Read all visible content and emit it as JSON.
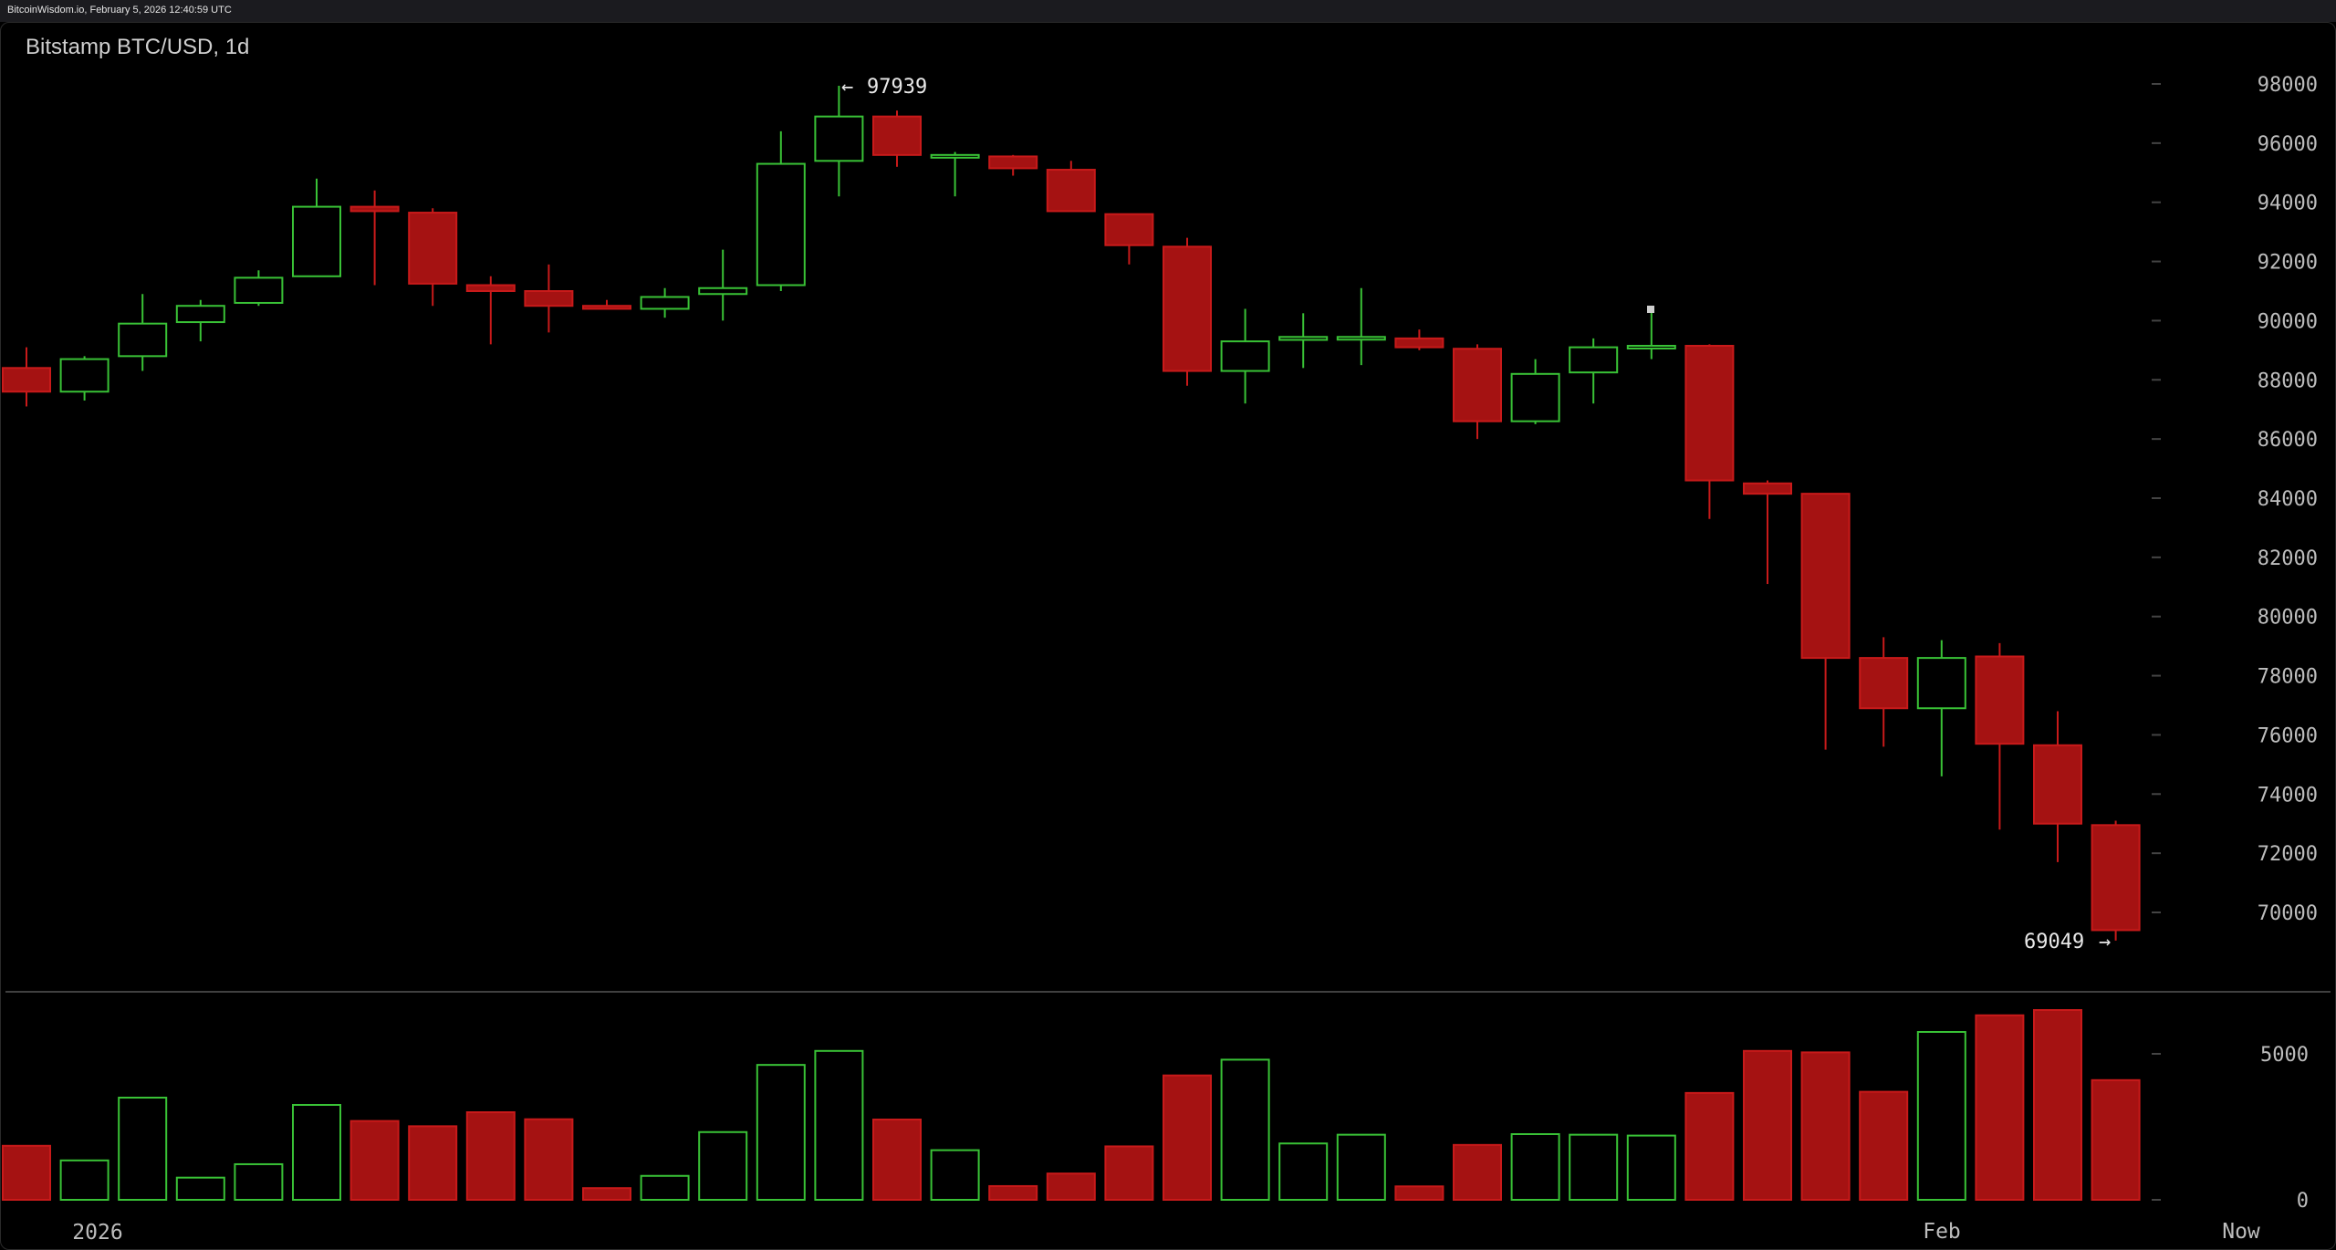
{
  "header": {
    "source": "BitcoinWisdom.io, February 5, 2026 12:40:59 UTC",
    "title": "Bitstamp BTC/USD, 1d"
  },
  "colors": {
    "up": "#39c236",
    "down": "#a51212",
    "down_edge": "#c81a1a",
    "grid_tick": "#444444",
    "separator": "#555555"
  },
  "chart_data": {
    "type": "candlestick",
    "title": "Bitstamp BTC/USD, 1d",
    "price_ylim": [
      68000,
      99200
    ],
    "price_ticks": [
      70000,
      72000,
      74000,
      76000,
      78000,
      80000,
      82000,
      84000,
      86000,
      88000,
      90000,
      92000,
      94000,
      96000,
      98000
    ],
    "volume_ylim": [
      0,
      6600
    ],
    "volume_ticks": [
      0,
      5000
    ],
    "x_labels": [
      "2026",
      "Feb",
      "Now"
    ],
    "annotations": {
      "high": "97939",
      "low": "69049"
    },
    "candles": [
      {
        "open": 88400,
        "high": 89100,
        "low": 87100,
        "close": 87600,
        "volume": 1850
      },
      {
        "open": 87600,
        "high": 88800,
        "low": 87300,
        "close": 88700,
        "volume": 1350
      },
      {
        "open": 88800,
        "high": 90900,
        "low": 88300,
        "close": 89900,
        "volume": 3500
      },
      {
        "open": 89950,
        "high": 90700,
        "low": 89300,
        "close": 90500,
        "volume": 760
      },
      {
        "open": 90600,
        "high": 91700,
        "low": 90500,
        "close": 91450,
        "volume": 1220
      },
      {
        "open": 91500,
        "high": 94800,
        "low": 91500,
        "close": 93850,
        "volume": 3250
      },
      {
        "open": 93850,
        "high": 94400,
        "low": 91200,
        "close": 93700,
        "volume": 2700
      },
      {
        "open": 93650,
        "high": 93800,
        "low": 90500,
        "close": 91250,
        "volume": 2520
      },
      {
        "open": 91200,
        "high": 91500,
        "low": 89200,
        "close": 91000,
        "volume": 3000
      },
      {
        "open": 91000,
        "high": 91900,
        "low": 89600,
        "close": 90500,
        "volume": 2760
      },
      {
        "open": 90500,
        "high": 90700,
        "low": 90400,
        "close": 90400,
        "volume": 400
      },
      {
        "open": 90400,
        "high": 91100,
        "low": 90100,
        "close": 90800,
        "volume": 820
      },
      {
        "open": 90900,
        "high": 92400,
        "low": 90000,
        "close": 91100,
        "volume": 2320
      },
      {
        "open": 91200,
        "high": 96400,
        "low": 91000,
        "close": 95300,
        "volume": 4620
      },
      {
        "open": 95400,
        "high": 97939,
        "low": 94200,
        "close": 96900,
        "volume": 5100
      },
      {
        "open": 96900,
        "high": 97100,
        "low": 95200,
        "close": 95600,
        "volume": 2750
      },
      {
        "open": 95600,
        "high": 95700,
        "low": 94200,
        "close": 95600,
        "volume": 1700
      },
      {
        "open": 95550,
        "high": 95600,
        "low": 94900,
        "close": 95150,
        "volume": 470
      },
      {
        "open": 95100,
        "high": 95400,
        "low": 93700,
        "close": 93700,
        "volume": 900
      },
      {
        "open": 93600,
        "high": 93600,
        "low": 91900,
        "close": 92550,
        "volume": 1830
      },
      {
        "open": 92500,
        "high": 92800,
        "low": 87800,
        "close": 88300,
        "volume": 4260
      },
      {
        "open": 88300,
        "high": 90400,
        "low": 87200,
        "close": 89300,
        "volume": 4800
      },
      {
        "open": 89350,
        "high": 90250,
        "low": 88400,
        "close": 89450,
        "volume": 1930
      },
      {
        "open": 89400,
        "high": 91100,
        "low": 88500,
        "close": 89450,
        "volume": 2230
      },
      {
        "open": 89400,
        "high": 89700,
        "low": 89000,
        "close": 89100,
        "volume": 460
      },
      {
        "open": 89050,
        "high": 89200,
        "low": 86000,
        "close": 86600,
        "volume": 1880
      },
      {
        "open": 86600,
        "high": 88700,
        "low": 86500,
        "close": 88200,
        "volume": 2250
      },
      {
        "open": 88250,
        "high": 89400,
        "low": 87200,
        "close": 89100,
        "volume": 2230
      },
      {
        "open": 89150,
        "high": 90400,
        "low": 88700,
        "close": 89150,
        "volume": 2200
      },
      {
        "open": 89150,
        "high": 89200,
        "low": 83300,
        "close": 84600,
        "volume": 3660
      },
      {
        "open": 84500,
        "high": 84600,
        "low": 81100,
        "close": 84150,
        "volume": 5100
      },
      {
        "open": 84150,
        "high": 84150,
        "low": 75500,
        "close": 78600,
        "volume": 5050
      },
      {
        "open": 78600,
        "high": 79300,
        "low": 75600,
        "close": 76900,
        "volume": 3700
      },
      {
        "open": 76900,
        "high": 79200,
        "low": 74600,
        "close": 78600,
        "volume": 5750
      },
      {
        "open": 78650,
        "high": 79100,
        "low": 72800,
        "close": 75700,
        "volume": 6320
      },
      {
        "open": 75650,
        "high": 76800,
        "low": 71700,
        "close": 73000,
        "volume": 6500
      },
      {
        "open": 72950,
        "high": 73100,
        "low": 69049,
        "close": 69400,
        "volume": 4100
      }
    ]
  }
}
